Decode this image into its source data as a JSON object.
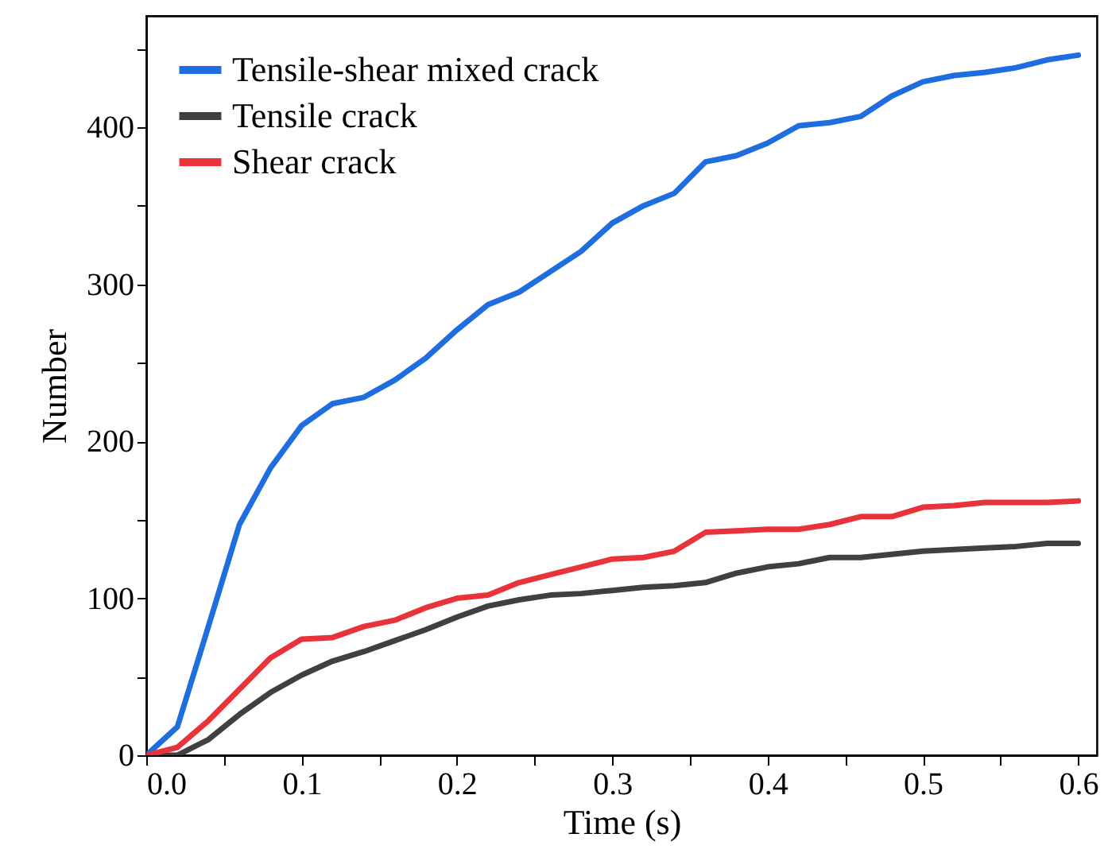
{
  "chart_data": {
    "type": "line",
    "xlabel": "Time (s)",
    "ylabel": "Number",
    "x": [
      0,
      0.02,
      0.04,
      0.06,
      0.08,
      0.1,
      0.12,
      0.14,
      0.16,
      0.18,
      0.2,
      0.22,
      0.24,
      0.26,
      0.28,
      0.3,
      0.32,
      0.34,
      0.36,
      0.38,
      0.4,
      0.42,
      0.44,
      0.46,
      0.48,
      0.5,
      0.52,
      0.54,
      0.56,
      0.58,
      0.6
    ],
    "series": [
      {
        "name": "Tensile-shear mixed crack",
        "color": "#1f6ee0",
        "values": [
          0,
          18,
          82,
          147,
          183,
          210,
          224,
          228,
          239,
          253,
          271,
          287,
          295,
          308,
          321,
          339,
          350,
          358,
          378,
          382,
          390,
          401,
          403,
          407,
          420,
          429,
          433,
          435,
          438,
          443,
          446
        ]
      },
      {
        "name": "Tensile crack",
        "color": "#404040",
        "values": [
          0,
          0,
          10,
          26,
          40,
          51,
          60,
          66,
          73,
          80,
          88,
          95,
          99,
          102,
          103,
          105,
          107,
          108,
          110,
          116,
          120,
          122,
          126,
          126,
          128,
          130,
          131,
          132,
          133,
          135,
          135
        ]
      },
      {
        "name": "Shear crack",
        "color": "#e8333a",
        "values": [
          0,
          5,
          22,
          42,
          62,
          74,
          75,
          82,
          86,
          94,
          100,
          102,
          110,
          115,
          120,
          125,
          126,
          130,
          142,
          143,
          144,
          144,
          147,
          152,
          152,
          158,
          159,
          161,
          161,
          161,
          162
        ]
      }
    ],
    "xlim": [
      0,
      0.612
    ],
    "ylim": [
      0,
      471
    ],
    "xticks": [
      {
        "value": 0,
        "label": "0.0"
      },
      {
        "value": 0.05,
        "label": null
      },
      0.1,
      {
        "value": 0.15,
        "label": null
      },
      0.2,
      {
        "value": 0.25,
        "label": null
      },
      0.3,
      {
        "value": 0.35,
        "label": null
      },
      0.4,
      {
        "value": 0.45,
        "label": null
      },
      0.5,
      {
        "value": 0.55,
        "label": null
      },
      0.6
    ],
    "yticks": [
      0,
      {
        "value": 50,
        "label": null
      },
      100,
      {
        "value": 150,
        "label": null
      },
      200,
      {
        "value": 250,
        "label": null
      },
      300,
      {
        "value": 350,
        "label": null
      },
      400,
      {
        "value": 450,
        "label": null
      }
    ],
    "grid": false,
    "legend": "top left",
    "marker": "none",
    "line_style": "solid"
  }
}
